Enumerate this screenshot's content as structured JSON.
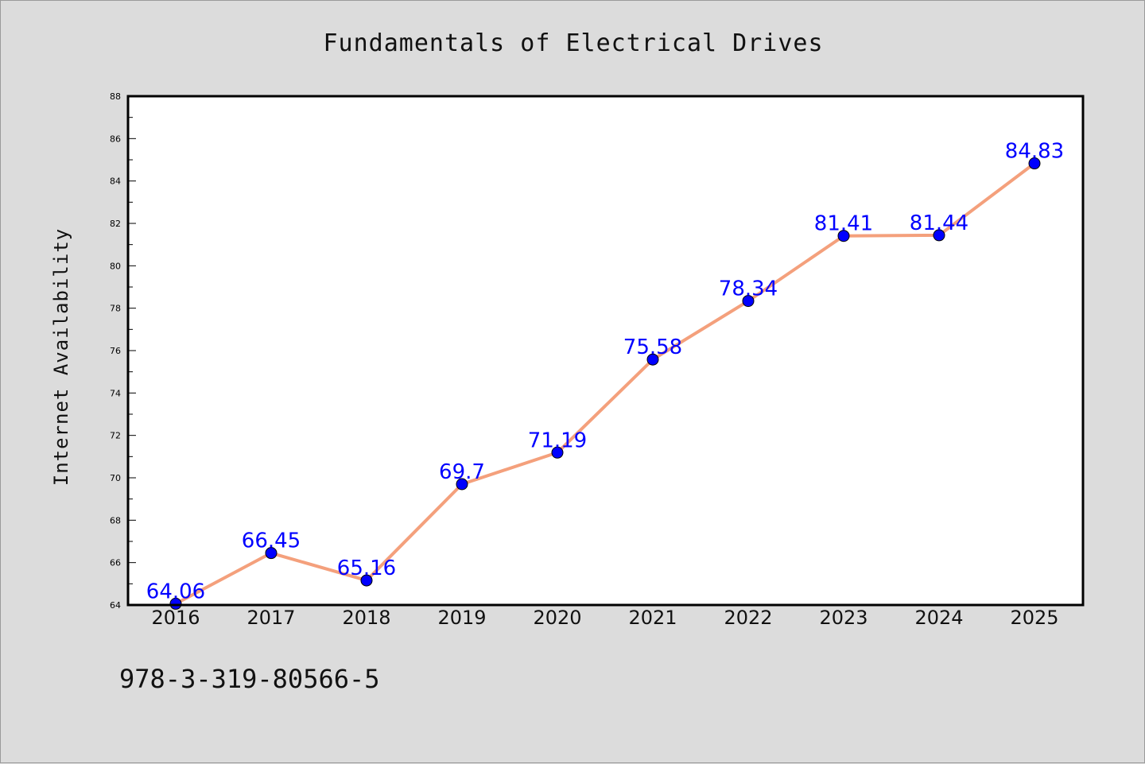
{
  "chart_data": {
    "type": "line",
    "title": "Fundamentals of Electrical Drives",
    "xlabel": "",
    "ylabel": "Internet Availability",
    "categories": [
      "2016",
      "2017",
      "2018",
      "2019",
      "2020",
      "2021",
      "2022",
      "2023",
      "2024",
      "2025"
    ],
    "series": [
      {
        "values": [
          64.06,
          66.45,
          65.16,
          69.7,
          71.19,
          75.58,
          78.34,
          81.41,
          81.44,
          84.83
        ],
        "labels": [
          "64.06",
          "66.45",
          "65.16",
          "69.7",
          "71.19",
          "75.58",
          "78.34",
          "81.41",
          "81.44",
          "84.83"
        ],
        "line_color": "#f4a07c",
        "marker_color": "#0000ff"
      }
    ],
    "ylim": [
      64,
      88
    ],
    "yticks": [
      "64",
      "66",
      "68",
      "70",
      "72",
      "74",
      "76",
      "78",
      "80",
      "82",
      "84",
      "86",
      "88"
    ],
    "grid": false,
    "legend": "none"
  },
  "footer": {
    "code": "978-3-319-80566-5"
  },
  "colors": {
    "background": "#dcdcdc",
    "plot_area": "#ffffff",
    "label": "#0000ff"
  }
}
